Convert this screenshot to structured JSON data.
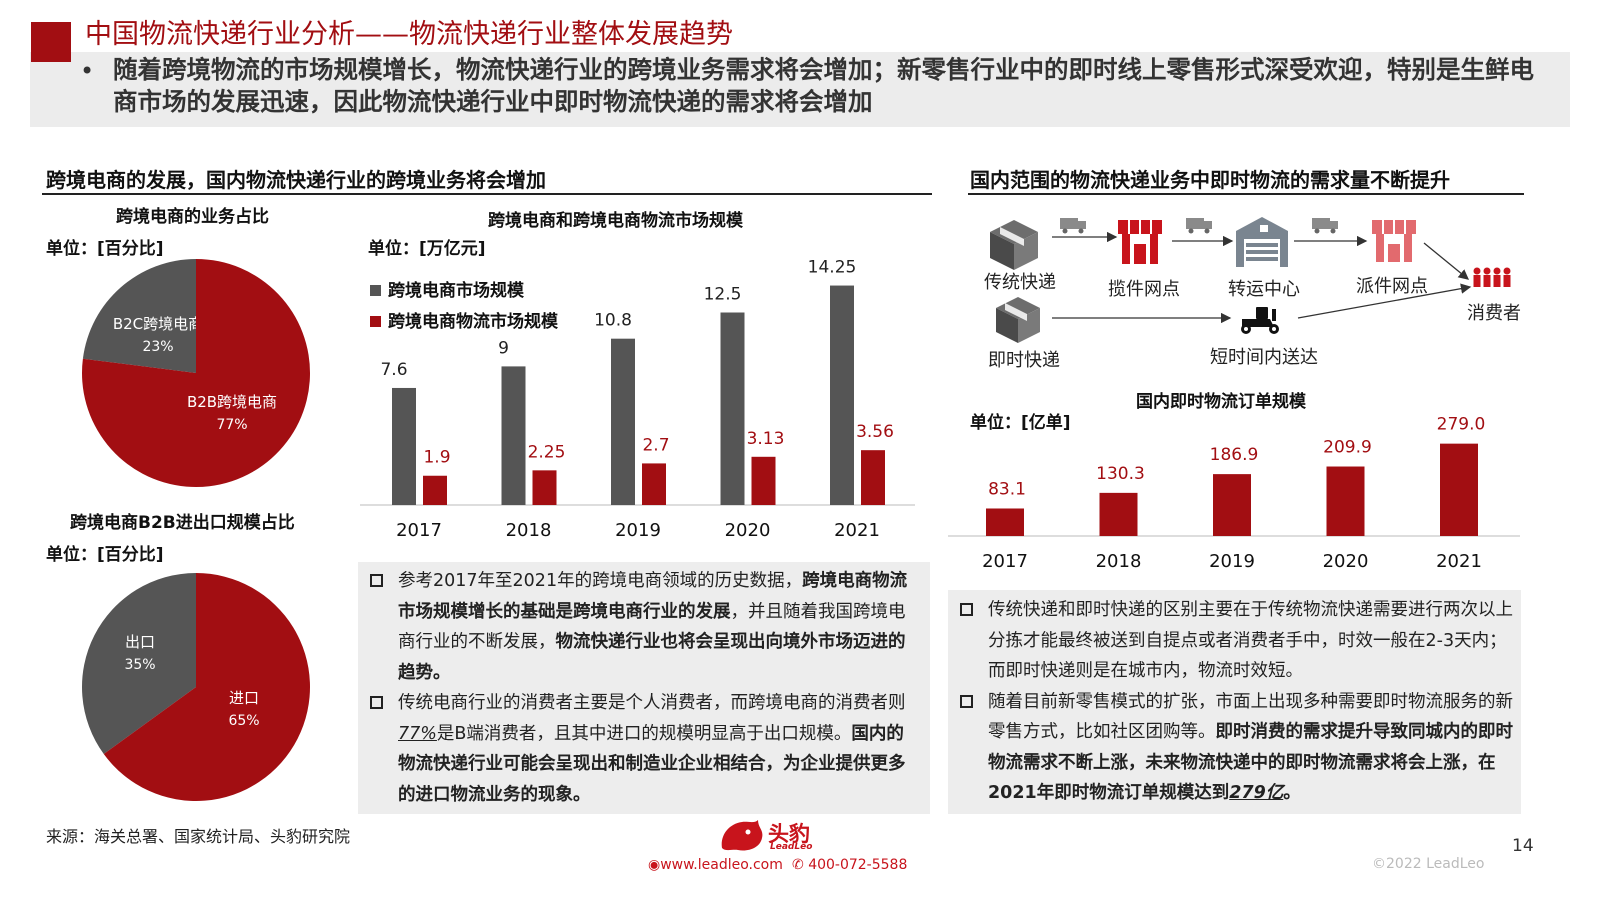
{
  "header": {
    "title": "中国物流快递行业分析——物流快递行业整体发展趋势",
    "bullet": "•",
    "summary": "随着跨境物流的市场规模增长，物流快递行业的跨境业务需求将会增加；新零售行业中的即时线上零售形式深受欢迎，特别是生鲜电商市场的发展迅速，因此物流快递行业中即时物流快递的需求将会增加"
  },
  "left_section": {
    "title": "跨境电商的发展，国内物流快递行业的跨境业务将会增加"
  },
  "right_section": {
    "title": "国内范围的物流快递业务中即时物流的需求量不断提升"
  },
  "colors": {
    "red": "#a20e12",
    "gray": "#555555",
    "accent": "#c8141c"
  },
  "chart_data": [
    {
      "type": "pie",
      "title": "跨境电商的业务占比",
      "unit": "单位：[百分比]",
      "slices": [
        {
          "label": "B2C跨境电商",
          "value": 23,
          "display": "23%",
          "color": "#555555"
        },
        {
          "label": "B2B跨境电商",
          "value": 77,
          "display": "77%",
          "color": "#a20e12"
        }
      ]
    },
    {
      "type": "pie",
      "title": "跨境电商B2B进出口规模占比",
      "unit": "单位：[百分比]",
      "slices": [
        {
          "label": "出口",
          "value": 35,
          "display": "35%",
          "color": "#555555"
        },
        {
          "label": "进口",
          "value": 65,
          "display": "65%",
          "color": "#a20e12"
        }
      ]
    },
    {
      "type": "bar",
      "title": "跨境电商和跨境电商物流市场规模",
      "unit": "单位：[万亿元]",
      "categories": [
        "2017",
        "2018",
        "2019",
        "2020",
        "2021"
      ],
      "series": [
        {
          "name": "跨境电商市场规模",
          "values": [
            7.6,
            9,
            10.8,
            12.5,
            14.25
          ],
          "labels": [
            "7.6",
            "9",
            "10.8",
            "12.5",
            "14.25"
          ],
          "color": "#555555",
          "label_color": "#222222"
        },
        {
          "name": "跨境电商物流市场规模",
          "values": [
            1.9,
            2.25,
            2.7,
            3.13,
            3.56
          ],
          "labels": [
            "1.9",
            "2.25",
            "2.7",
            "3.13",
            "3.56"
          ],
          "color": "#a20e12",
          "label_color": "#a20e12"
        }
      ],
      "ylim": [
        0,
        15
      ]
    },
    {
      "type": "bar",
      "title": "国内即时物流订单规模",
      "unit": "单位：[亿单]",
      "categories": [
        "2017",
        "2018",
        "2019",
        "2020",
        "2021"
      ],
      "series": [
        {
          "values": [
            83.1,
            130.3,
            186.9,
            209.9,
            279.0
          ],
          "labels": [
            "83.1",
            "130.3",
            "186.9",
            "209.9",
            "279.0"
          ],
          "color": "#a20e12",
          "label_color": "#a20e12"
        }
      ],
      "ylim": [
        0,
        290
      ]
    }
  ],
  "flow": {
    "nodes": {
      "traditional": "传统快递",
      "instant": "即时快递",
      "pickup": "揽件网点",
      "hub": "转运中心",
      "dispatch": "派件网点",
      "consumer": "消费者",
      "fast": "短时间内送达"
    },
    "icons": [
      "box-icon",
      "truck-icon",
      "shop-icon",
      "warehouse-icon",
      "scooter-icon",
      "people-icon"
    ]
  },
  "notes_left": [
    {
      "parts": [
        {
          "t": "参考2017年至2021年的跨境电商领域的历史数据，",
          "s": "n"
        },
        {
          "t": "跨境电商物流市场规模增长的基础是跨境电商行业的发展",
          "s": "b"
        },
        {
          "t": "，并且随着我国跨境电商行业的不断发展，",
          "s": "n"
        },
        {
          "t": "物流快递行业也将会呈现出向境外市场迈进的趋势。",
          "s": "b"
        }
      ]
    },
    {
      "parts": [
        {
          "t": "传统电商行业的消费者主要是个人消费者，而跨境电商的消费者则",
          "s": "n"
        },
        {
          "t": "77%",
          "s": "u"
        },
        {
          "t": "是B端消费者，且其中进口的规模明显高于出口规模。",
          "s": "n"
        },
        {
          "t": "国内的物流快递行业可能会呈现出和制造业企业相结合，为企业提供更多的进口物流业务的现象。",
          "s": "b"
        }
      ]
    }
  ],
  "notes_right": [
    {
      "parts": [
        {
          "t": "传统快递和即时快递的区别主要在于传统物流快递需要进行两次以上分拣才能最终被送到自提点或者消费者手中，时效一般在2-3天内；而即时快递则是在城市内，物流时效短。",
          "s": "n"
        }
      ]
    },
    {
      "parts": [
        {
          "t": "随着目前新零售模式的扩张，市面上出现多种需要即时物流服务的新零售方式，比如社区团购等。",
          "s": "n"
        },
        {
          "t": "即时消费的需求提升导致同城内的即时物流需求不断上涨，未来物流快递中的即时物流需求将会上涨，在2021年即时物流订单规模达到",
          "s": "b"
        },
        {
          "t": "279亿",
          "s": "bu"
        },
        {
          "t": "。",
          "s": "b"
        }
      ]
    }
  ],
  "footer": {
    "source": "来源：海关总署、国家统计局、头豹研究院",
    "logo": "头豹",
    "logo_sub": "LeadLeo",
    "website": "www.leadleo.com",
    "phone": "400-072-5588",
    "page": "14",
    "copyright": "©2022 LeadLeo"
  }
}
